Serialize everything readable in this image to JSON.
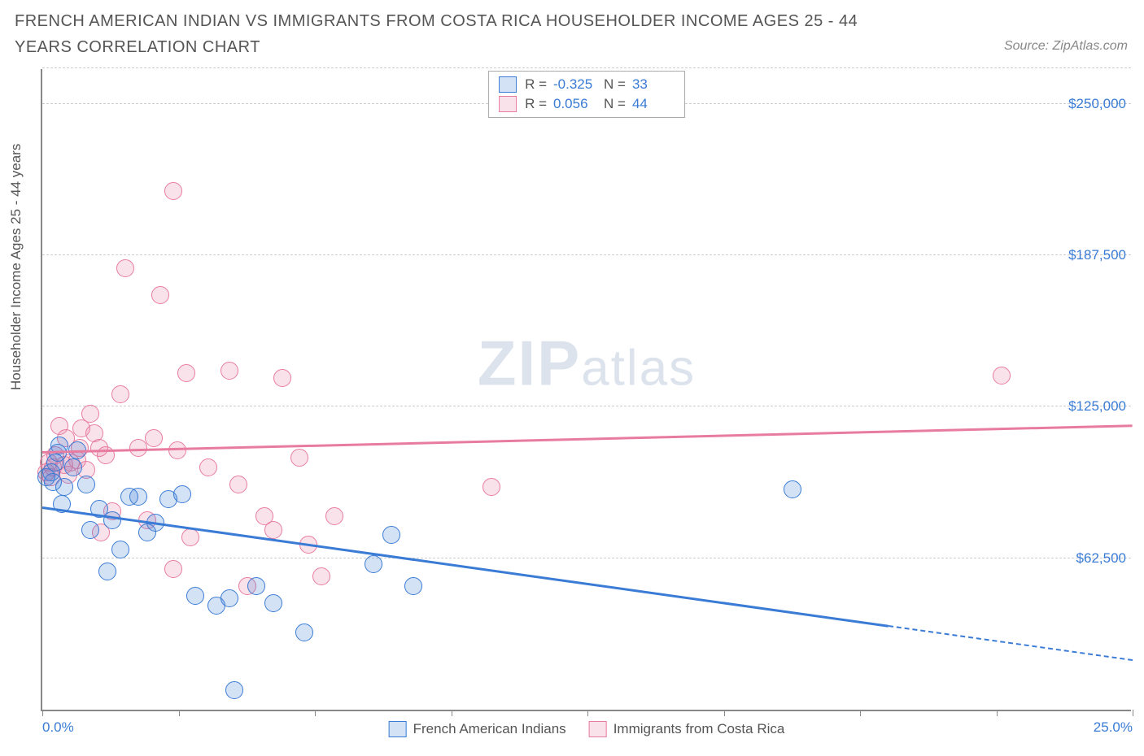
{
  "title": "FRENCH AMERICAN INDIAN VS IMMIGRANTS FROM COSTA RICA HOUSEHOLDER INCOME AGES 25 - 44 YEARS CORRELATION CHART",
  "source": "Source: ZipAtlas.com",
  "watermark_zip": "ZIP",
  "watermark_atlas": "atlas",
  "y_axis_title": "Householder Income Ages 25 - 44 years",
  "chart": {
    "type": "scatter",
    "xlim": [
      0,
      25
    ],
    "ylim": [
      0,
      265000
    ],
    "x_tick_positions": [
      0,
      3.125,
      6.25,
      9.375,
      12.5,
      15.625,
      18.75,
      21.875,
      25
    ],
    "x_tick_labels_shown": {
      "0": "0.0%",
      "25": "25.0%"
    },
    "y_gridlines": [
      62500,
      125000,
      187500,
      250000
    ],
    "y_tick_labels": [
      "$62,500",
      "$125,000",
      "$187,500",
      "$250,000"
    ],
    "background_color": "#ffffff",
    "grid_color": "#cccccc",
    "axis_color": "#888888",
    "tick_label_color": "#3a7bd5",
    "marker_radius": 11,
    "marker_fill_opacity": 0.25,
    "series_a": {
      "label": "French American Indians",
      "color_stroke": "#3a7bd5",
      "color_fill": "rgba(58,123,213,0.22)",
      "R": "-0.325",
      "N": "33",
      "trend_y_at_x0": 83000,
      "trend_y_at_x25": 20000,
      "trend_solid_until_x": 19.4,
      "points": [
        [
          0.1,
          96000
        ],
        [
          0.2,
          98000
        ],
        [
          0.25,
          94000
        ],
        [
          0.3,
          102000
        ],
        [
          0.35,
          106000
        ],
        [
          0.4,
          109000
        ],
        [
          0.45,
          85000
        ],
        [
          0.5,
          92000
        ],
        [
          0.7,
          100000
        ],
        [
          0.8,
          107000
        ],
        [
          1.0,
          93000
        ],
        [
          1.1,
          74000
        ],
        [
          1.3,
          83000
        ],
        [
          1.5,
          57000
        ],
        [
          1.6,
          78000
        ],
        [
          1.8,
          66000
        ],
        [
          2.0,
          88000
        ],
        [
          2.2,
          88000
        ],
        [
          2.4,
          73000
        ],
        [
          2.6,
          77000
        ],
        [
          2.9,
          87000
        ],
        [
          3.2,
          89000
        ],
        [
          3.5,
          47000
        ],
        [
          4.0,
          43000
        ],
        [
          4.3,
          46000
        ],
        [
          4.4,
          8000
        ],
        [
          4.9,
          51000
        ],
        [
          5.3,
          44000
        ],
        [
          6.0,
          32000
        ],
        [
          7.6,
          60000
        ],
        [
          8.0,
          72000
        ],
        [
          8.5,
          51000
        ],
        [
          17.2,
          91000
        ]
      ]
    },
    "series_b": {
      "label": "Immigrants from Costa Rica",
      "color_stroke": "#e87ba0",
      "color_fill": "rgba(232,123,160,0.22)",
      "R": "0.056",
      "N": "44",
      "trend_y_at_x0": 106000,
      "trend_y_at_x25": 117000,
      "points": [
        [
          0.1,
          98000
        ],
        [
          0.15,
          102000
        ],
        [
          0.2,
          96000
        ],
        [
          0.25,
          100000
        ],
        [
          0.3,
          105000
        ],
        [
          0.4,
          117000
        ],
        [
          0.5,
          101000
        ],
        [
          0.55,
          112000
        ],
        [
          0.6,
          97000
        ],
        [
          0.65,
          102000
        ],
        [
          0.8,
          103000
        ],
        [
          0.85,
          108000
        ],
        [
          0.9,
          116000
        ],
        [
          1.0,
          99000
        ],
        [
          1.1,
          122000
        ],
        [
          1.2,
          114000
        ],
        [
          1.3,
          108000
        ],
        [
          1.35,
          73000
        ],
        [
          1.45,
          105000
        ],
        [
          1.6,
          82000
        ],
        [
          1.8,
          130000
        ],
        [
          1.9,
          182000
        ],
        [
          2.2,
          108000
        ],
        [
          2.4,
          78000
        ],
        [
          2.55,
          112000
        ],
        [
          2.7,
          171000
        ],
        [
          3.0,
          214000
        ],
        [
          3.0,
          58000
        ],
        [
          3.1,
          107000
        ],
        [
          3.3,
          139000
        ],
        [
          3.4,
          71000
        ],
        [
          3.8,
          100000
        ],
        [
          4.3,
          140000
        ],
        [
          4.5,
          93000
        ],
        [
          4.7,
          51000
        ],
        [
          5.1,
          80000
        ],
        [
          5.3,
          74000
        ],
        [
          5.5,
          137000
        ],
        [
          5.9,
          104000
        ],
        [
          6.1,
          68000
        ],
        [
          6.4,
          55000
        ],
        [
          6.7,
          80000
        ],
        [
          10.3,
          92000
        ],
        [
          22.0,
          138000
        ]
      ]
    }
  }
}
